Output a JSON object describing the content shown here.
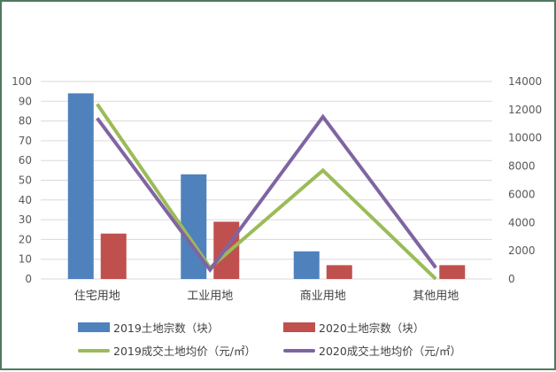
{
  "chart_data": {
    "type": "bar+line",
    "title": "",
    "categories": [
      "住宅用地",
      "工业用地",
      "商业用地",
      "其他用地"
    ],
    "series": [
      {
        "name": "2019土地宗数（块）",
        "type": "bar",
        "axis": "left",
        "color": "#4f81bd",
        "values": [
          94,
          53,
          14,
          0
        ]
      },
      {
        "name": "2020土地宗数（块）",
        "type": "bar",
        "axis": "left",
        "color": "#c0504d",
        "values": [
          23,
          29,
          7,
          7
        ]
      },
      {
        "name": "2019成交土地均价（元/㎡）",
        "type": "line",
        "axis": "right",
        "color": "#9bbb59",
        "values": [
          12400,
          800,
          7700,
          0
        ]
      },
      {
        "name": "2020成交土地均价（元/㎡）",
        "type": "line",
        "axis": "right",
        "color": "#8064a2",
        "values": [
          11400,
          650,
          11500,
          800
        ]
      }
    ],
    "left_axis": {
      "min": 0,
      "max": 100,
      "step": 10,
      "ticks": [
        "0",
        "10",
        "20",
        "30",
        "40",
        "50",
        "60",
        "70",
        "80",
        "90",
        "100"
      ]
    },
    "right_axis": {
      "min": 0,
      "max": 14000,
      "step": 2000,
      "ticks": [
        "0",
        "2000",
        "4000",
        "6000",
        "8000",
        "10000",
        "12000",
        "14000"
      ]
    },
    "xlabel": "",
    "ylabel": "",
    "grid": true,
    "legend_position": "bottom"
  },
  "legend": [
    {
      "label": "2019土地宗数（块）",
      "kind": "bar",
      "color": "#4f81bd"
    },
    {
      "label": "2020土地宗数（块）",
      "kind": "bar",
      "color": "#c0504d"
    },
    {
      "label": "2019成交土地均价（元/㎡）",
      "kind": "line",
      "color": "#9bbb59"
    },
    {
      "label": "2020成交土地均价（元/㎡）",
      "kind": "line",
      "color": "#8064a2"
    }
  ],
  "colors": {
    "frame_border": "#4e7a5e",
    "gridline": "#d9d9d9",
    "axis_text": "#595959"
  }
}
